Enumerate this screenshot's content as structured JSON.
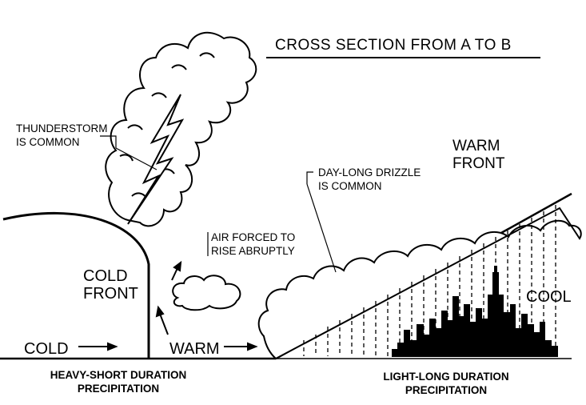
{
  "title": "CROSS SECTION FROM A TO B",
  "labels": {
    "thunderstorm": [
      "THUNDERSTORM",
      "IS COMMON"
    ],
    "drizzle": [
      "DAY-LONG DRIZZLE",
      "IS COMMON"
    ],
    "air_forced": [
      "AIR FORCED TO",
      "RISE ABRUPTLY"
    ],
    "warm_front": [
      "WARM",
      "FRONT"
    ],
    "cold_front": [
      "COLD",
      "FRONT"
    ],
    "cold": "COLD",
    "warm": "WARM",
    "cool": "COOL",
    "heavy_precip": [
      "HEAVY-SHORT DURATION",
      "PRECIPITATION"
    ],
    "light_precip": [
      "LIGHT-LONG DURATION",
      "PRECIPITATION"
    ]
  }
}
